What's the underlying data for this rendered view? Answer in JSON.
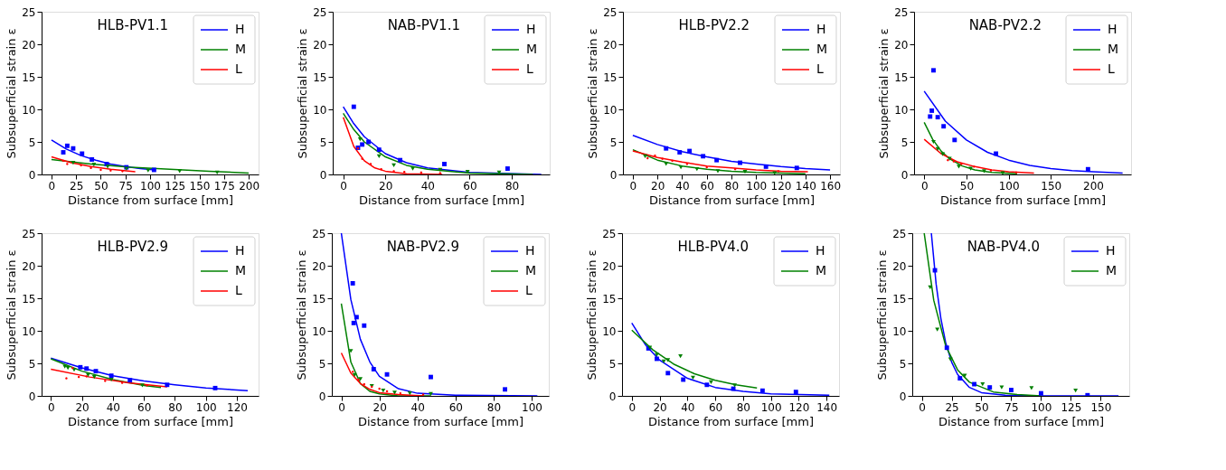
{
  "chart_data": [
    {
      "type": "line",
      "title": "HLB-PV1.1",
      "xlabel": "Distance from surface [mm]",
      "ylabel": "Subsuperficial strain ε",
      "xlim": [
        -10,
        210
      ],
      "xticks": [
        0,
        25,
        50,
        75,
        100,
        125,
        150,
        175,
        200
      ],
      "ylim": [
        0,
        25
      ],
      "yticks": [
        0,
        5,
        10,
        15,
        20,
        25
      ],
      "legend": "top right",
      "grid": false,
      "series": [
        {
          "name": "H",
          "color": "#0000ff",
          "x": [
            0,
            15,
            30,
            45,
            60,
            75,
            90,
            105
          ],
          "values": [
            5.3,
            3.9,
            2.9,
            2.2,
            1.6,
            1.2,
            0.9,
            0.7
          ]
        },
        {
          "name": "M",
          "color": "#008000",
          "x": [
            0,
            40,
            80,
            120,
            160,
            200
          ],
          "values": [
            2.3,
            1.6,
            1.1,
            0.8,
            0.5,
            0.2
          ]
        },
        {
          "name": "L",
          "color": "#ff0000",
          "x": [
            0,
            20,
            40,
            60,
            85
          ],
          "values": [
            2.7,
            1.8,
            1.2,
            0.8,
            0.4
          ]
        },
        {
          "color": "#0000ff",
          "type": "scatter",
          "marker": "square",
          "x": [
            12,
            16,
            22,
            31,
            41,
            56,
            76,
            104
          ],
          "values": [
            3.4,
            4.4,
            4.0,
            3.2,
            2.3,
            1.6,
            1.1,
            0.7
          ]
        },
        {
          "color": "#008000",
          "type": "scatter",
          "marker": "triangle",
          "x": [
            22,
            43,
            57,
            76,
            98,
            130,
            168
          ],
          "values": [
            1.8,
            1.5,
            1.2,
            0.9,
            0.6,
            0.5,
            0.3
          ]
        },
        {
          "color": "#ff0000",
          "type": "scatter",
          "marker": "circle",
          "x": [
            12,
            16,
            30,
            40,
            50,
            60,
            72
          ],
          "values": [
            2.1,
            1.6,
            1.4,
            1.0,
            0.7,
            0.6,
            0.5
          ]
        }
      ]
    },
    {
      "type": "line",
      "title": "NAB-PV1.1",
      "xlabel": "Distance from surface [mm]",
      "ylabel": "Subsuperficial strain ε",
      "xlim": [
        -5,
        98
      ],
      "xticks": [
        0,
        20,
        40,
        60,
        80
      ],
      "ylim": [
        0,
        25
      ],
      "yticks": [
        0,
        5,
        10,
        15,
        20,
        25
      ],
      "legend": "top right",
      "grid": false,
      "series": [
        {
          "name": "H",
          "color": "#0000ff",
          "x": [
            0,
            5,
            10,
            20,
            30,
            40,
            60,
            94
          ],
          "values": [
            10.4,
            7.8,
            5.8,
            3.2,
            1.8,
            1.0,
            0.3,
            0.0
          ]
        },
        {
          "name": "M",
          "color": "#008000",
          "x": [
            0,
            5,
            10,
            20,
            30,
            40,
            60,
            90
          ],
          "values": [
            9.4,
            6.9,
            5.0,
            2.7,
            1.4,
            0.8,
            0.2,
            0.0
          ]
        },
        {
          "name": "L",
          "color": "#ff0000",
          "x": [
            0,
            5,
            10,
            15,
            20,
            30,
            47
          ],
          "values": [
            8.8,
            4.3,
            2.1,
            1.0,
            0.5,
            0.1,
            0.0
          ]
        },
        {
          "color": "#0000ff",
          "type": "scatter",
          "marker": "square",
          "x": [
            5,
            7,
            9,
            12,
            17,
            27,
            48,
            78
          ],
          "values": [
            10.4,
            4.1,
            4.6,
            5.0,
            3.8,
            2.2,
            1.6,
            0.9
          ]
        },
        {
          "color": "#008000",
          "type": "scatter",
          "marker": "triangle",
          "x": [
            8,
            17,
            24,
            33,
            46,
            59,
            74
          ],
          "values": [
            5.4,
            2.8,
            1.4,
            0.9,
            0.7,
            0.4,
            0.3
          ]
        },
        {
          "color": "#ff0000",
          "type": "scatter",
          "marker": "circle",
          "x": [
            7,
            9,
            13,
            18,
            24,
            29,
            37,
            46
          ],
          "values": [
            4.0,
            2.4,
            1.6,
            0.8,
            0.5,
            0.4,
            0.3,
            0.2
          ]
        }
      ]
    },
    {
      "type": "line",
      "title": "HLB-PV2.2",
      "xlabel": "Distance from surface [mm]",
      "ylabel": "Subsuperficial strain ε",
      "xlim": [
        -8,
        168
      ],
      "xticks": [
        0,
        20,
        40,
        60,
        80,
        100,
        120,
        140,
        160
      ],
      "ylim": [
        0,
        25
      ],
      "yticks": [
        0,
        5,
        10,
        15,
        20,
        25
      ],
      "legend": "top right",
      "grid": false,
      "series": [
        {
          "name": "H",
          "color": "#0000ff",
          "x": [
            0,
            20,
            40,
            60,
            80,
            100,
            120,
            140,
            160
          ],
          "values": [
            6.0,
            4.6,
            3.5,
            2.7,
            2.0,
            1.6,
            1.2,
            0.9,
            0.7
          ]
        },
        {
          "name": "M",
          "color": "#008000",
          "x": [
            0,
            20,
            40,
            60,
            80,
            100,
            120,
            140
          ],
          "values": [
            3.8,
            2.2,
            1.3,
            0.8,
            0.5,
            0.3,
            0.2,
            0.1
          ]
        },
        {
          "name": "L",
          "color": "#ff0000",
          "x": [
            0,
            20,
            40,
            60,
            80,
            100,
            120,
            142
          ],
          "values": [
            3.6,
            2.6,
            1.9,
            1.3,
            1.0,
            0.7,
            0.5,
            0.4
          ]
        },
        {
          "color": "#0000ff",
          "type": "scatter",
          "marker": "square",
          "x": [
            27,
            38,
            46,
            57,
            68,
            87,
            108,
            133
          ],
          "values": [
            4.0,
            3.4,
            3.6,
            2.8,
            2.2,
            1.8,
            1.2,
            1.0
          ]
        },
        {
          "color": "#008000",
          "type": "scatter",
          "marker": "triangle",
          "x": [
            10,
            27,
            39,
            52,
            69,
            91,
            115
          ],
          "values": [
            2.8,
            1.6,
            1.1,
            0.8,
            0.5,
            0.4,
            0.2
          ]
        },
        {
          "color": "#ff0000",
          "type": "scatter",
          "marker": "circle",
          "x": [
            12,
            18,
            24,
            32,
            44,
            60,
            83,
            118
          ],
          "values": [
            2.5,
            2.9,
            2.4,
            2.1,
            1.6,
            1.1,
            0.8,
            0.5
          ]
        }
      ]
    },
    {
      "type": "line",
      "title": "NAB-PV2.2",
      "xlabel": "Distance from surface [mm]",
      "ylabel": "Subsuperficial strain ε",
      "xlim": [
        -12,
        245
      ],
      "xticks": [
        0,
        50,
        100,
        150,
        200
      ],
      "ylim": [
        0,
        25
      ],
      "yticks": [
        0,
        5,
        10,
        15,
        20,
        25
      ],
      "legend": "top right",
      "grid": false,
      "series": [
        {
          "name": "H",
          "color": "#0000ff",
          "x": [
            0,
            25,
            50,
            75,
            100,
            125,
            150,
            175,
            200,
            235
          ],
          "values": [
            12.8,
            8.2,
            5.3,
            3.4,
            2.2,
            1.4,
            0.9,
            0.6,
            0.4,
            0.2
          ]
        },
        {
          "name": "M",
          "color": "#008000",
          "x": [
            0,
            10,
            20,
            30,
            45,
            60,
            80,
            110
          ],
          "values": [
            8.0,
            5.4,
            3.6,
            2.4,
            1.3,
            0.7,
            0.3,
            0.1
          ]
        },
        {
          "name": "L",
          "color": "#ff0000",
          "x": [
            0,
            20,
            40,
            60,
            80,
            100,
            130
          ],
          "values": [
            5.4,
            3.2,
            1.9,
            1.2,
            0.7,
            0.4,
            0.2
          ]
        },
        {
          "color": "#0000ff",
          "type": "scatter",
          "marker": "square",
          "x": [
            7,
            9,
            11,
            16,
            23,
            36,
            85,
            194
          ],
          "values": [
            8.9,
            9.8,
            16.0,
            8.8,
            7.4,
            5.3,
            3.2,
            0.8
          ]
        },
        {
          "color": "#008000",
          "type": "scatter",
          "marker": "triangle",
          "x": [
            11,
            16,
            22,
            30,
            41,
            55,
            71,
            93
          ],
          "values": [
            5.0,
            3.9,
            3.1,
            2.4,
            1.2,
            0.9,
            0.5,
            0.2
          ]
        },
        {
          "color": "#ff0000",
          "type": "scatter",
          "marker": "circle",
          "x": [
            28,
            35,
            44,
            59,
            79,
            109
          ],
          "values": [
            2.2,
            2.0,
            1.6,
            1.2,
            0.6,
            0.3
          ]
        }
      ]
    },
    {
      "type": "line",
      "title": "HLB-PV2.9",
      "xlabel": "Distance from surface [mm]",
      "ylabel": "Subsuperficial strain ε",
      "xlim": [
        -6,
        134
      ],
      "xticks": [
        0,
        20,
        40,
        60,
        80,
        100,
        120
      ],
      "ylim": [
        0,
        25
      ],
      "yticks": [
        0,
        5,
        10,
        15,
        20,
        25
      ],
      "legend": "top right",
      "grid": false,
      "series": [
        {
          "name": "H",
          "color": "#0000ff",
          "x": [
            0,
            20,
            40,
            60,
            80,
            100,
            127
          ],
          "values": [
            5.8,
            4.3,
            3.1,
            2.3,
            1.7,
            1.2,
            0.8
          ]
        },
        {
          "name": "M",
          "color": "#008000",
          "x": [
            0,
            20,
            40,
            60,
            71
          ],
          "values": [
            5.7,
            3.8,
            2.5,
            1.6,
            1.3
          ]
        },
        {
          "name": "L",
          "color": "#ff0000",
          "x": [
            0,
            25,
            50,
            75
          ],
          "values": [
            4.1,
            2.9,
            2.0,
            1.4
          ]
        },
        {
          "color": "#0000ff",
          "type": "scatter",
          "marker": "square",
          "x": [
            19,
            23,
            29,
            39,
            51,
            75,
            106
          ],
          "values": [
            4.4,
            4.2,
            3.8,
            3.1,
            2.4,
            1.7,
            1.2
          ]
        },
        {
          "color": "#008000",
          "type": "scatter",
          "marker": "triangle",
          "x": [
            9,
            11,
            15,
            24,
            28,
            39,
            59
          ],
          "values": [
            4.5,
            4.3,
            4.0,
            3.2,
            2.9,
            2.5,
            1.6
          ]
        },
        {
          "color": "#ff0000",
          "type": "scatter",
          "marker": "circle",
          "x": [
            10,
            14,
            18,
            23,
            35,
            46,
            62
          ],
          "values": [
            2.7,
            4.3,
            2.9,
            3.0,
            2.3,
            2.0,
            1.6
          ]
        }
      ]
    },
    {
      "type": "line",
      "title": "NAB-PV2.9",
      "xlabel": "Distance from surface [mm]",
      "ylabel": "Subsuperficial strain ε",
      "xlim": [
        -5,
        109
      ],
      "xticks": [
        0,
        20,
        40,
        60,
        80,
        100
      ],
      "ylim": [
        0,
        25
      ],
      "yticks": [
        0,
        5,
        10,
        15,
        20,
        25
      ],
      "legend": "top right",
      "grid": false,
      "series": [
        {
          "name": "H",
          "color": "#0000ff",
          "x": [
            0,
            5,
            10,
            15,
            20,
            30,
            40,
            60,
            103
          ],
          "values": [
            25,
            14.8,
            8.7,
            5.2,
            3.0,
            1.1,
            0.4,
            0.1,
            0
          ]
        },
        {
          "name": "M",
          "color": "#008000",
          "x": [
            0,
            5,
            10,
            15,
            20,
            30,
            47
          ],
          "values": [
            14.2,
            5.2,
            1.9,
            0.7,
            0.3,
            0.0,
            0
          ]
        },
        {
          "name": "L",
          "color": "#ff0000",
          "x": [
            0,
            5,
            10,
            15,
            20,
            30,
            43
          ],
          "values": [
            6.6,
            3.5,
            1.9,
            1.0,
            0.5,
            0.2,
            0.0
          ]
        },
        {
          "color": "#0000ff",
          "type": "scatter",
          "marker": "square",
          "x": [
            6,
            6.5,
            8,
            12,
            17,
            24,
            47,
            86
          ],
          "values": [
            17.3,
            11.2,
            12.1,
            10.8,
            4.1,
            3.3,
            2.9,
            1.0
          ]
        },
        {
          "color": "#008000",
          "type": "scatter",
          "marker": "triangle",
          "x": [
            5,
            7,
            10,
            16,
            22,
            28,
            36,
            47
          ],
          "values": [
            6.9,
            3.2,
            2.6,
            1.5,
            0.8,
            0.5,
            0.4,
            0.3
          ]
        },
        {
          "color": "#ff0000",
          "type": "scatter",
          "marker": "circle",
          "x": [
            6,
            9,
            12,
            16,
            20,
            24,
            31,
            43
          ],
          "values": [
            3.7,
            2.5,
            1.8,
            1.4,
            1.1,
            0.7,
            0.4,
            0.2
          ]
        }
      ]
    },
    {
      "type": "line",
      "title": "HLB-PV4.0",
      "xlabel": "Distance from surface [mm]",
      "ylabel": "Subsuperficial strain ε",
      "xlim": [
        -7,
        149
      ],
      "xticks": [
        0,
        20,
        40,
        60,
        80,
        100,
        120,
        140
      ],
      "ylim": [
        0,
        25
      ],
      "yticks": [
        0,
        5,
        10,
        15,
        20,
        25
      ],
      "legend": "top right",
      "grid": false,
      "series": [
        {
          "name": "H",
          "color": "#0000ff",
          "x": [
            0,
            10,
            20,
            40,
            60,
            80,
            100,
            142
          ],
          "values": [
            11.2,
            7.8,
            5.5,
            2.7,
            1.3,
            0.7,
            0.3,
            0.1
          ]
        },
        {
          "name": "M",
          "color": "#008000",
          "x": [
            0,
            15,
            30,
            45,
            60,
            75,
            90
          ],
          "values": [
            10.1,
            7.1,
            4.9,
            3.4,
            2.4,
            1.7,
            1.2
          ]
        },
        {
          "color": "#0000ff",
          "type": "scatter",
          "marker": "square",
          "x": [
            12,
            18,
            26,
            37,
            54,
            73,
            94,
            118
          ],
          "values": [
            7.3,
            5.7,
            3.5,
            2.5,
            1.7,
            1.1,
            0.8,
            0.6
          ]
        },
        {
          "color": "#008000",
          "type": "scatter",
          "marker": "triangle",
          "x": [
            13,
            18,
            23,
            26,
            35,
            44,
            57,
            74
          ],
          "values": [
            7.4,
            6.3,
            5.3,
            5.5,
            6.1,
            2.8,
            2.1,
            1.6
          ]
        }
      ]
    },
    {
      "type": "line",
      "title": "NAB-PV4.0",
      "xlabel": "Distance from surface [mm]",
      "ylabel": "Subsuperficial strain ε",
      "xlim": [
        -8,
        174
      ],
      "xticks": [
        0,
        25,
        50,
        75,
        100,
        125,
        150
      ],
      "ylim": [
        0,
        25
      ],
      "yticks": [
        0,
        5,
        10,
        15,
        20,
        25
      ],
      "legend": "top right",
      "grid": false,
      "series": [
        {
          "name": "H",
          "color": "#0000ff",
          "x": [
            8,
            12,
            16,
            20,
            25,
            30,
            40,
            50,
            70,
            100,
            165
          ],
          "values": [
            25,
            17.2,
            11.9,
            8.2,
            5.2,
            3.3,
            1.3,
            0.5,
            0.1,
            0.0,
            0
          ]
        },
        {
          "name": "M",
          "color": "#008000",
          "x": [
            2,
            10,
            20,
            30,
            40,
            60,
            80,
            100
          ],
          "values": [
            25,
            14.7,
            7.7,
            4.0,
            2.1,
            0.6,
            0.2,
            0.0
          ]
        },
        {
          "color": "#0000ff",
          "type": "scatter",
          "marker": "square",
          "x": [
            11,
            21,
            32,
            44,
            57,
            75,
            100,
            139
          ],
          "values": [
            19.3,
            7.4,
            2.7,
            1.8,
            1.3,
            0.9,
            0.4,
            0.1
          ]
        },
        {
          "color": "#008000",
          "type": "scatter",
          "marker": "triangle",
          "x": [
            7,
            13,
            24,
            36,
            51,
            67,
            92,
            129
          ],
          "values": [
            16.7,
            10.2,
            5.6,
            3.1,
            1.8,
            1.3,
            1.2,
            0.8
          ]
        }
      ]
    }
  ]
}
